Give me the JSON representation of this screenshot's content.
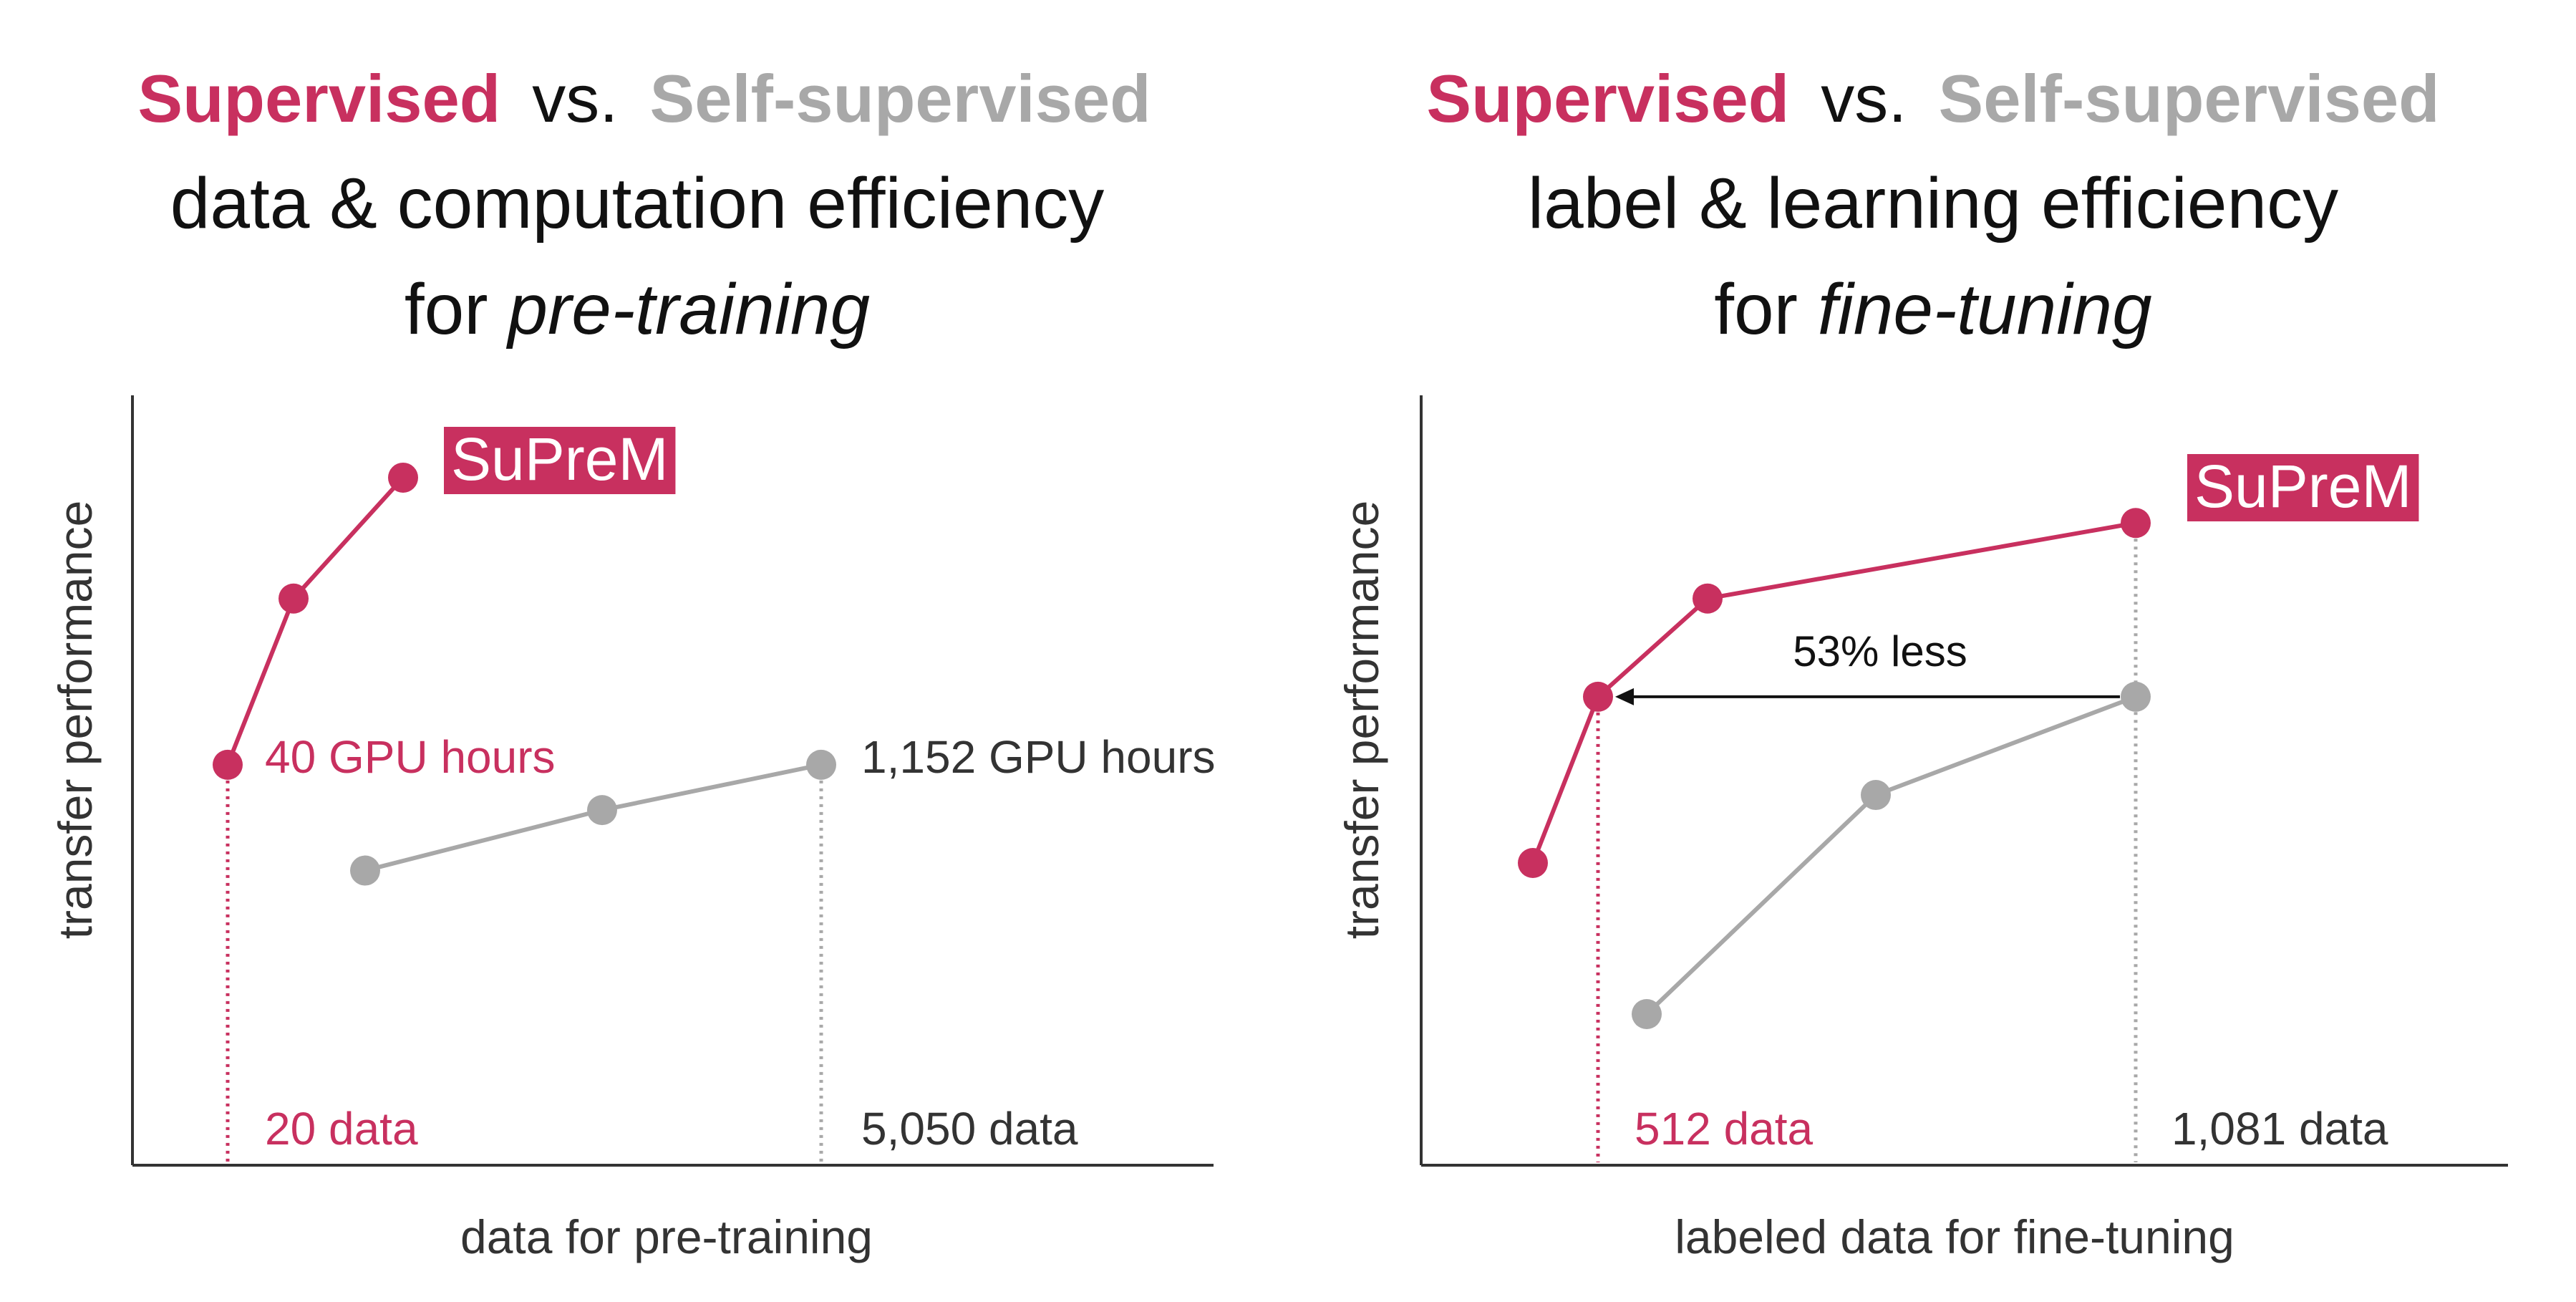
{
  "colors": {
    "supervised": "#c8305f",
    "self_supervised": "#a8a8a8",
    "text": "#333333",
    "axis": "#333333"
  },
  "chart_data": [
    {
      "type": "line",
      "title": {
        "supervised": "Supervised",
        "vs": "vs.",
        "self_supervised": "Self-supervised",
        "line2": "data & computation efficiency",
        "line3_prefix": "for ",
        "line3_emph": "pre-training"
      },
      "xlabel": "data for pre-training",
      "ylabel": "transfer performance",
      "grid": false,
      "series": [
        {
          "key": "supervised",
          "name": "SuPreM",
          "points": [
            {
              "x": 20,
              "y": 0.53
            },
            {
              "x": 60,
              "y": 0.75
            },
            {
              "x": 100,
              "y": 0.91
            }
          ]
        },
        {
          "key": "self_supervised",
          "points": [
            {
              "x": 1100,
              "y": 0.39
            },
            {
              "x": 3000,
              "y": 0.47
            },
            {
              "x": 5050,
              "y": 0.53
            }
          ]
        }
      ],
      "annotations": {
        "supervised_marker": {
          "x": 20,
          "label": "20 data",
          "hours": "40 GPU hours"
        },
        "self_supervised_marker": {
          "x": 5050,
          "label": "5,050 data",
          "hours": "1,152 GPU hours"
        }
      }
    },
    {
      "type": "line",
      "title": {
        "supervised": "Supervised",
        "vs": "vs.",
        "self_supervised": "Self-supervised",
        "line2": "label & learning efficiency",
        "line3_prefix": "for ",
        "line3_emph": "fine-tuning"
      },
      "xlabel": "labeled data for fine-tuning",
      "ylabel": "transfer performance",
      "grid": false,
      "series": [
        {
          "key": "supervised",
          "name": "SuPreM",
          "points": [
            {
              "x": 300,
              "y": 0.4
            },
            {
              "x": 512,
              "y": 0.62
            },
            {
              "x": 640,
              "y": 0.75
            },
            {
              "x": 1081,
              "y": 0.85
            }
          ]
        },
        {
          "key": "self_supervised",
          "points": [
            {
              "x": 430,
              "y": 0.2
            },
            {
              "x": 760,
              "y": 0.49
            },
            {
              "x": 1081,
              "y": 0.62
            }
          ]
        }
      ],
      "annotations": {
        "supervised_marker": {
          "x": 512,
          "label": "512 data"
        },
        "self_supervised_marker": {
          "x": 1081,
          "label": "1,081 data"
        },
        "arrow_label": "53% less"
      }
    }
  ]
}
